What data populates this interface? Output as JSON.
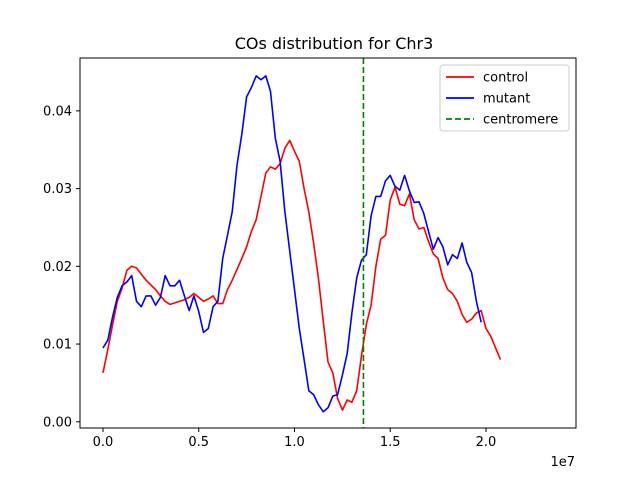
{
  "chart_data": {
    "type": "line",
    "title": "COs distribution for Chr3",
    "xlabel": "",
    "ylabel": "",
    "x_offset_label": "1e7",
    "xlim": [
      -1200000,
      24700000
    ],
    "ylim": [
      -0.0008,
      0.0468
    ],
    "x_ticks": [
      0,
      5000000,
      10000000,
      15000000,
      20000000
    ],
    "x_tick_labels": [
      "0.0",
      "0.5",
      "1.0",
      "1.5",
      "2.0"
    ],
    "y_ticks": [
      0.0,
      0.01,
      0.02,
      0.03,
      0.04
    ],
    "y_tick_labels": [
      "0.00",
      "0.01",
      "0.02",
      "0.03",
      "0.04"
    ],
    "grid": false,
    "legend_position": "top-right",
    "legend_entries": [
      "control",
      "mutant",
      "centromere"
    ],
    "series": [
      {
        "name": "control",
        "color": "#ff0000",
        "points": [
          [
            0,
            0.0063
          ],
          [
            250000,
            0.0093
          ],
          [
            500000,
            0.0125
          ],
          [
            750000,
            0.0155
          ],
          [
            1000000,
            0.0172
          ],
          [
            1250000,
            0.0195
          ],
          [
            1500000,
            0.02
          ],
          [
            1750000,
            0.0198
          ],
          [
            2000000,
            0.019
          ],
          [
            2250000,
            0.0182
          ],
          [
            2500000,
            0.0176
          ],
          [
            2750000,
            0.017
          ],
          [
            3000000,
            0.0162
          ],
          [
            3250000,
            0.0155
          ],
          [
            3500000,
            0.0151
          ],
          [
            3750000,
            0.0153
          ],
          [
            4000000,
            0.0155
          ],
          [
            4250000,
            0.0157
          ],
          [
            4500000,
            0.016
          ],
          [
            4750000,
            0.0165
          ],
          [
            5000000,
            0.016
          ],
          [
            5250000,
            0.0155
          ],
          [
            5500000,
            0.0158
          ],
          [
            5750000,
            0.0162
          ],
          [
            6000000,
            0.0152
          ],
          [
            6250000,
            0.0152
          ],
          [
            6500000,
            0.017
          ],
          [
            6750000,
            0.0182
          ],
          [
            7000000,
            0.0196
          ],
          [
            7250000,
            0.021
          ],
          [
            7500000,
            0.0225
          ],
          [
            7750000,
            0.0245
          ],
          [
            8000000,
            0.026
          ],
          [
            8250000,
            0.029
          ],
          [
            8500000,
            0.032
          ],
          [
            8750000,
            0.0328
          ],
          [
            9000000,
            0.0325
          ],
          [
            9250000,
            0.0332
          ],
          [
            9500000,
            0.0352
          ],
          [
            9750000,
            0.0362
          ],
          [
            10000000,
            0.0348
          ],
          [
            10250000,
            0.0335
          ],
          [
            10500000,
            0.03
          ],
          [
            10750000,
            0.027
          ],
          [
            11000000,
            0.023
          ],
          [
            11250000,
            0.0185
          ],
          [
            11500000,
            0.013
          ],
          [
            11750000,
            0.0077
          ],
          [
            12000000,
            0.0063
          ],
          [
            12250000,
            0.003
          ],
          [
            12500000,
            0.0015
          ],
          [
            12750000,
            0.0028
          ],
          [
            13000000,
            0.0025
          ],
          [
            13250000,
            0.004
          ],
          [
            13500000,
            0.0085
          ],
          [
            13750000,
            0.0125
          ],
          [
            14000000,
            0.015
          ],
          [
            14250000,
            0.02
          ],
          [
            14500000,
            0.0235
          ],
          [
            14750000,
            0.024
          ],
          [
            15000000,
            0.0285
          ],
          [
            15250000,
            0.0302
          ],
          [
            15500000,
            0.028
          ],
          [
            15750000,
            0.0278
          ],
          [
            16000000,
            0.0293
          ],
          [
            16250000,
            0.026
          ],
          [
            16500000,
            0.0248
          ],
          [
            16750000,
            0.025
          ],
          [
            17000000,
            0.0232
          ],
          [
            17250000,
            0.0216
          ],
          [
            17500000,
            0.021
          ],
          [
            17750000,
            0.0185
          ],
          [
            18000000,
            0.017
          ],
          [
            18250000,
            0.0165
          ],
          [
            18500000,
            0.0155
          ],
          [
            18750000,
            0.0138
          ],
          [
            19000000,
            0.0128
          ],
          [
            19250000,
            0.0132
          ],
          [
            19500000,
            0.014
          ],
          [
            19750000,
            0.0143
          ],
          [
            20000000,
            0.012
          ],
          [
            20250000,
            0.011
          ],
          [
            20500000,
            0.0095
          ],
          [
            20750000,
            0.008
          ]
        ]
      },
      {
        "name": "mutant",
        "color": "#0000ff",
        "points": [
          [
            0,
            0.0095
          ],
          [
            250000,
            0.0105
          ],
          [
            500000,
            0.0135
          ],
          [
            750000,
            0.016
          ],
          [
            1000000,
            0.0175
          ],
          [
            1250000,
            0.018
          ],
          [
            1500000,
            0.0188
          ],
          [
            1750000,
            0.0155
          ],
          [
            2000000,
            0.0148
          ],
          [
            2250000,
            0.0162
          ],
          [
            2500000,
            0.0162
          ],
          [
            2750000,
            0.015
          ],
          [
            3000000,
            0.016
          ],
          [
            3250000,
            0.0188
          ],
          [
            3500000,
            0.0175
          ],
          [
            3750000,
            0.0175
          ],
          [
            4000000,
            0.0182
          ],
          [
            4250000,
            0.0162
          ],
          [
            4500000,
            0.0143
          ],
          [
            4750000,
            0.0162
          ],
          [
            5000000,
            0.0142
          ],
          [
            5250000,
            0.0115
          ],
          [
            5500000,
            0.012
          ],
          [
            5750000,
            0.0148
          ],
          [
            6000000,
            0.0155
          ],
          [
            6250000,
            0.021
          ],
          [
            6500000,
            0.024
          ],
          [
            6750000,
            0.027
          ],
          [
            7000000,
            0.033
          ],
          [
            7250000,
            0.037
          ],
          [
            7500000,
            0.0418
          ],
          [
            7750000,
            0.043
          ],
          [
            8000000,
            0.0445
          ],
          [
            8250000,
            0.044
          ],
          [
            8500000,
            0.0445
          ],
          [
            8750000,
            0.0425
          ],
          [
            9000000,
            0.0365
          ],
          [
            9250000,
            0.0335
          ],
          [
            9500000,
            0.027
          ],
          [
            9750000,
            0.022
          ],
          [
            10000000,
            0.017
          ],
          [
            10250000,
            0.012
          ],
          [
            10500000,
            0.008
          ],
          [
            10750000,
            0.004
          ],
          [
            11000000,
            0.0035
          ],
          [
            11250000,
            0.0022
          ],
          [
            11500000,
            0.0013
          ],
          [
            11750000,
            0.0018
          ],
          [
            12000000,
            0.0033
          ],
          [
            12250000,
            0.0035
          ],
          [
            12500000,
            0.006
          ],
          [
            12750000,
            0.0088
          ],
          [
            13000000,
            0.014
          ],
          [
            13250000,
            0.0185
          ],
          [
            13500000,
            0.0208
          ],
          [
            13750000,
            0.0215
          ],
          [
            14000000,
            0.0265
          ],
          [
            14250000,
            0.029
          ],
          [
            14500000,
            0.029
          ],
          [
            14750000,
            0.031
          ],
          [
            15000000,
            0.0317
          ],
          [
            15250000,
            0.0303
          ],
          [
            15500000,
            0.0298
          ],
          [
            15750000,
            0.0317
          ],
          [
            16000000,
            0.0297
          ],
          [
            16250000,
            0.0282
          ],
          [
            16500000,
            0.0283
          ],
          [
            16750000,
            0.0268
          ],
          [
            17000000,
            0.0245
          ],
          [
            17250000,
            0.0222
          ],
          [
            17500000,
            0.0237
          ],
          [
            17750000,
            0.0225
          ],
          [
            18000000,
            0.0202
          ],
          [
            18250000,
            0.0215
          ],
          [
            18500000,
            0.021
          ],
          [
            18750000,
            0.023
          ],
          [
            19000000,
            0.0205
          ],
          [
            19250000,
            0.0192
          ],
          [
            19500000,
            0.0155
          ],
          [
            19750000,
            0.0128
          ]
        ]
      }
    ],
    "reference_lines": [
      {
        "name": "centromere",
        "orientation": "vertical",
        "x": 13600000,
        "color": "#008000",
        "style": "dashed"
      }
    ]
  }
}
